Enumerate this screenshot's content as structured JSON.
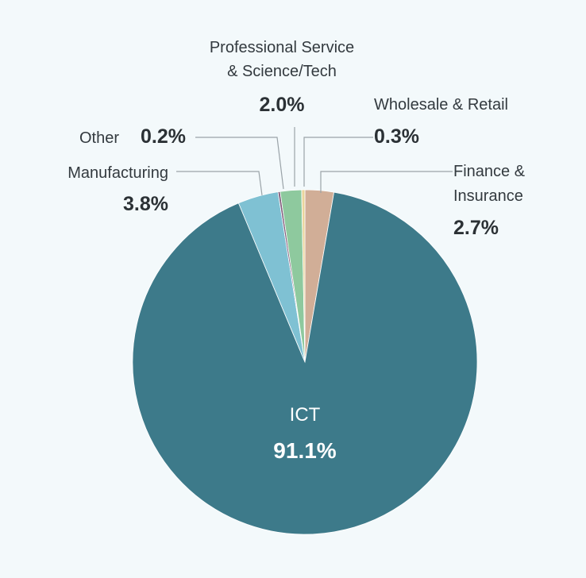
{
  "chart_data": {
    "type": "pie",
    "title": "",
    "start": "top, clockwise",
    "slices": [
      {
        "label": "Finance & Insurance",
        "label_lines": [
          "Finance &",
          "Insurance"
        ],
        "value": 2.7,
        "value_label": "2.7%",
        "color": "#d1ae97"
      },
      {
        "label": "ICT",
        "label_lines": [
          "ICT"
        ],
        "value": 91.1,
        "value_label": "91.1%",
        "color": "#3d7a8a"
      },
      {
        "label": "Manufacturing",
        "label_lines": [
          "Manufacturing"
        ],
        "value": 3.8,
        "value_label": "3.8%",
        "color": "#7fc1d3"
      },
      {
        "label": "Other",
        "label_lines": [
          "Other"
        ],
        "value": 0.2,
        "value_label": "0.2%",
        "color": "#7e5a79"
      },
      {
        "label": "Professional Service & Science/Tech",
        "label_lines": [
          "Professional Service",
          "& Science/Tech"
        ],
        "value": 2.0,
        "value_label": "2.0%",
        "color": "#8ec99e"
      },
      {
        "label": "Wholesale & Retail",
        "label_lines": [
          "Wholesale & Retail"
        ],
        "value": 0.3,
        "value_label": "0.3%",
        "color": "#ead59c"
      }
    ]
  }
}
